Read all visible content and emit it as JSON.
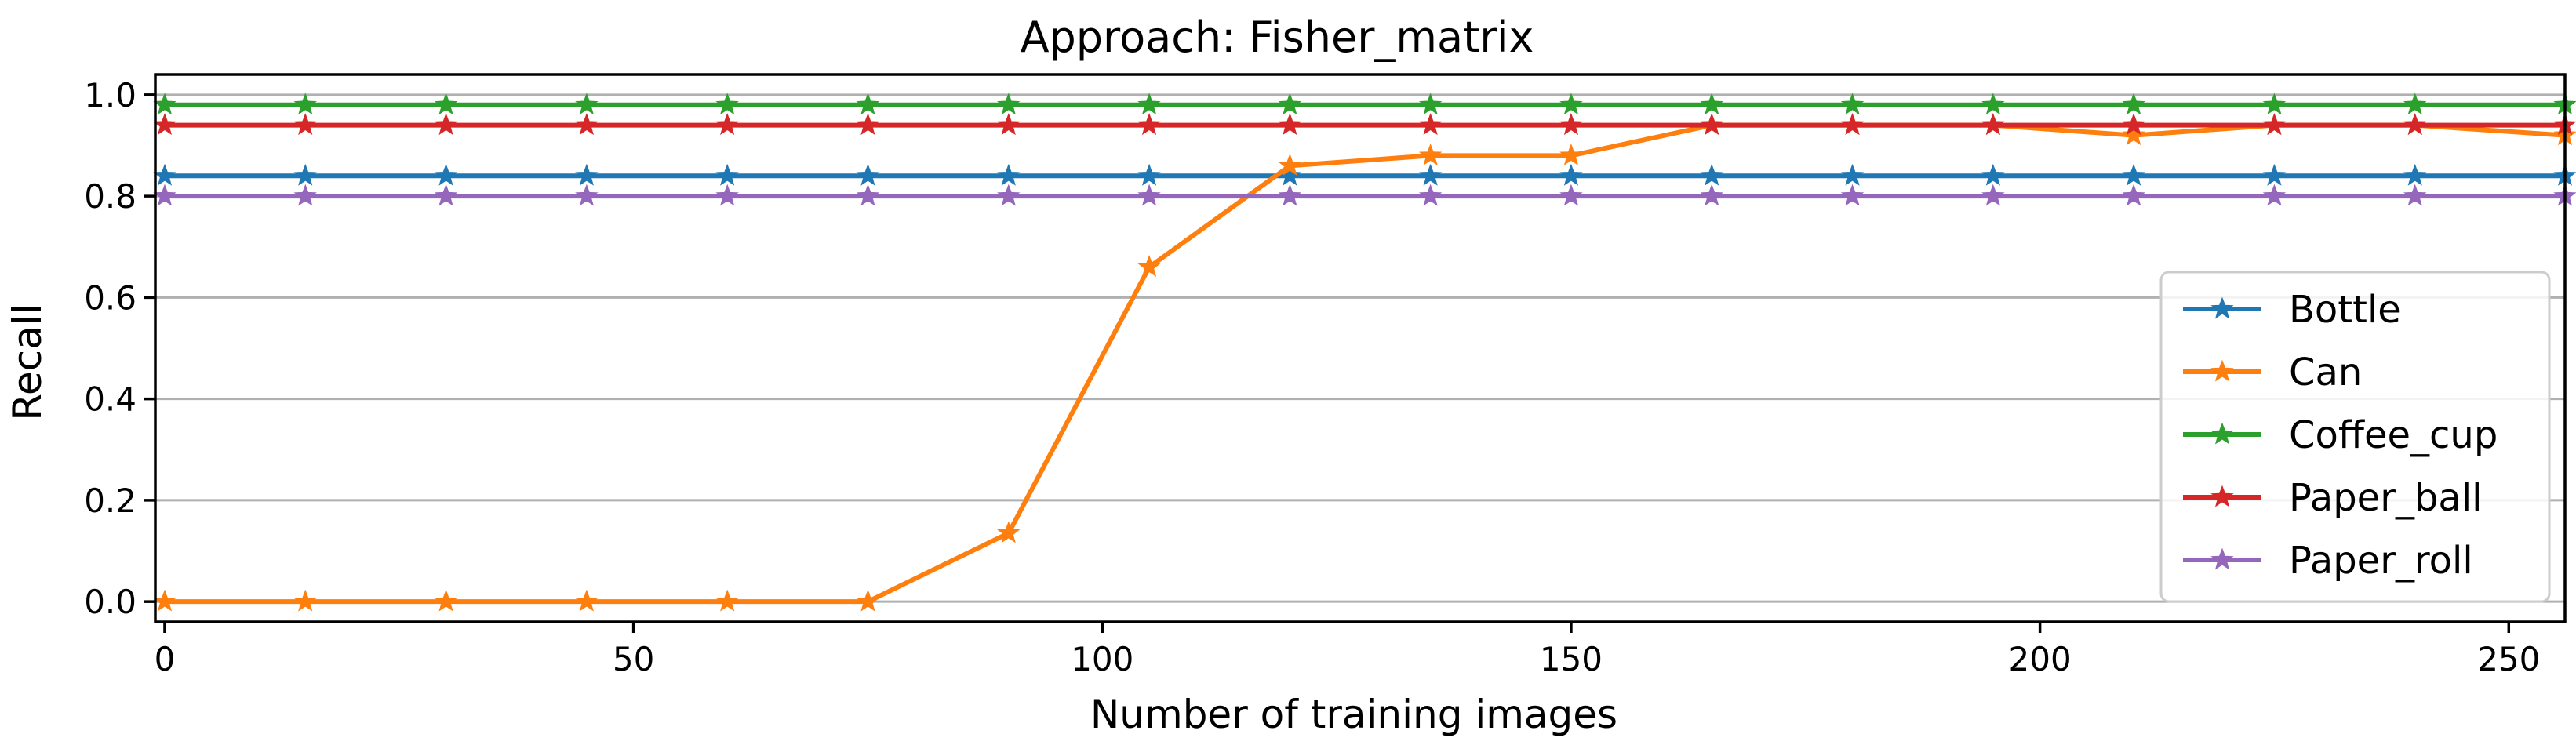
{
  "chart_data": {
    "type": "line",
    "title": "Approach: Fisher_matrix",
    "xlabel": "Number of training images",
    "ylabel": "Recall",
    "xlim": [
      -1,
      256
    ],
    "ylim": [
      -0.04,
      1.04
    ],
    "xticks": [
      0,
      50,
      100,
      150,
      200,
      250
    ],
    "xtick_labels": [
      "0",
      "50",
      "100",
      "150",
      "200",
      "250"
    ],
    "yticks": [
      0.0,
      0.2,
      0.4,
      0.6,
      0.8,
      1.0
    ],
    "ytick_labels": [
      "0.0",
      "0.2",
      "0.4",
      "0.6",
      "0.8",
      "1.0"
    ],
    "grid": "horizontal",
    "legend_position": "lower-right",
    "marker": "star",
    "x": [
      0,
      15,
      30,
      45,
      60,
      75,
      90,
      105,
      120,
      135,
      150,
      165,
      180,
      195,
      210,
      225,
      240,
      256
    ],
    "series": [
      {
        "name": "Bottle",
        "color": "#1f77b4",
        "values": [
          0.84,
          0.84,
          0.84,
          0.84,
          0.84,
          0.84,
          0.84,
          0.84,
          0.84,
          0.84,
          0.84,
          0.84,
          0.84,
          0.84,
          0.84,
          0.84,
          0.84,
          0.84
        ]
      },
      {
        "name": "Can",
        "color": "#ff7f0e",
        "values": [
          0.0,
          0.0,
          0.0,
          0.0,
          0.0,
          0.0,
          0.135,
          0.66,
          0.86,
          0.88,
          0.88,
          0.94,
          0.94,
          0.94,
          0.92,
          0.94,
          0.94,
          0.92
        ]
      },
      {
        "name": "Coffee_cup",
        "color": "#2ca02c",
        "values": [
          0.98,
          0.98,
          0.98,
          0.98,
          0.98,
          0.98,
          0.98,
          0.98,
          0.98,
          0.98,
          0.98,
          0.98,
          0.98,
          0.98,
          0.98,
          0.98,
          0.98,
          0.98
        ]
      },
      {
        "name": "Paper_ball",
        "color": "#d62728",
        "values": [
          0.94,
          0.94,
          0.94,
          0.94,
          0.94,
          0.94,
          0.94,
          0.94,
          0.94,
          0.94,
          0.94,
          0.94,
          0.94,
          0.94,
          0.94,
          0.94,
          0.94,
          0.94
        ]
      },
      {
        "name": "Paper_roll",
        "color": "#9467bd",
        "values": [
          0.8,
          0.8,
          0.8,
          0.8,
          0.8,
          0.8,
          0.8,
          0.8,
          0.8,
          0.8,
          0.8,
          0.8,
          0.8,
          0.8,
          0.8,
          0.8,
          0.8,
          0.8
        ]
      }
    ]
  }
}
